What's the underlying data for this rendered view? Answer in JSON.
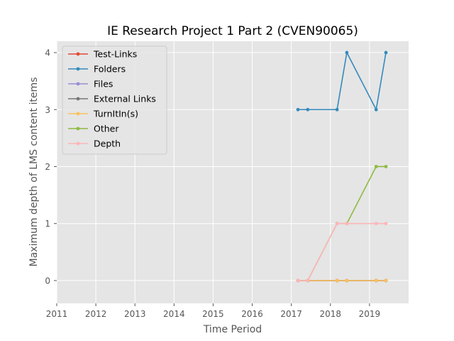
{
  "chart_data": {
    "type": "line",
    "title": "IE Research Project 1 Part 2 (CVEN90065)",
    "xlabel": "Time Period",
    "ylabel": "Maximum depth of LMS content items",
    "xlim": [
      2011,
      2020
    ],
    "ylim": [
      -0.4,
      4.2
    ],
    "x_ticks": [
      "2011",
      "2012",
      "2013",
      "2014",
      "2015",
      "2016",
      "2017",
      "2018",
      "2019"
    ],
    "y_ticks": [
      "0",
      "1",
      "2",
      "3",
      "4"
    ],
    "grid": true,
    "legend_position": "top-left",
    "x": [
      2017.17,
      2017.42,
      2018.17,
      2018.42,
      2019.17,
      2019.42
    ],
    "series": [
      {
        "name": "Test-Links",
        "color": "#E24A33",
        "values": [
          0,
          0,
          0,
          0,
          0,
          0
        ]
      },
      {
        "name": "Folders",
        "color": "#348ABD",
        "values": [
          3,
          3,
          3,
          4,
          3,
          4
        ]
      },
      {
        "name": "Files",
        "color": "#988ED5",
        "values": [
          0,
          0,
          0,
          0,
          0,
          0
        ]
      },
      {
        "name": "External Links",
        "color": "#777777",
        "values": [
          0,
          0,
          0,
          0,
          0,
          0
        ]
      },
      {
        "name": "TurnItIn(s)",
        "color": "#FBC15E",
        "values": [
          0,
          0,
          0,
          0,
          0,
          0
        ]
      },
      {
        "name": "Other",
        "color": "#8EBA42",
        "values": [
          0,
          0,
          1,
          1,
          2,
          2
        ]
      },
      {
        "name": "Depth",
        "color": "#FFB5B8",
        "values": [
          0,
          0,
          1,
          1,
          1,
          1
        ]
      }
    ]
  }
}
